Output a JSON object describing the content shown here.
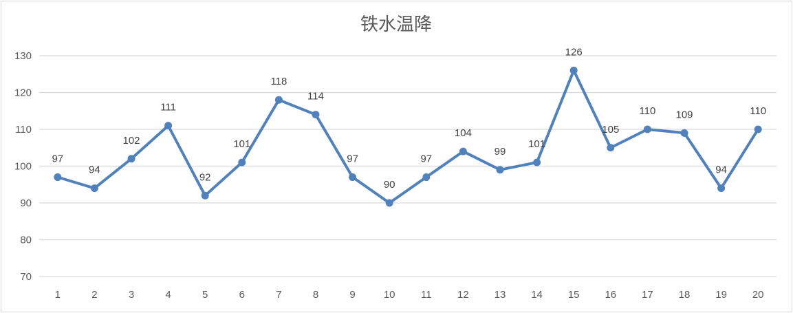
{
  "chart_data": {
    "type": "line",
    "title": "铁水温降",
    "xlabel": "",
    "ylabel": "",
    "categories": [
      "1",
      "2",
      "3",
      "4",
      "5",
      "6",
      "7",
      "8",
      "9",
      "10",
      "11",
      "12",
      "13",
      "14",
      "15",
      "16",
      "17",
      "18",
      "19",
      "20"
    ],
    "series": [
      {
        "values": [
          97,
          94,
          102,
          111,
          92,
          101,
          118,
          114,
          97,
          90,
          97,
          104,
          99,
          101,
          126,
          105,
          110,
          109,
          94,
          110
        ]
      }
    ],
    "ylim": [
      70,
      130
    ],
    "yticks": [
      "70",
      "80",
      "90",
      "100",
      "110",
      "120",
      "130"
    ],
    "grid": true,
    "legend": "none",
    "line_color": "#4f81bd",
    "grid_color": "#d9d9d9"
  }
}
